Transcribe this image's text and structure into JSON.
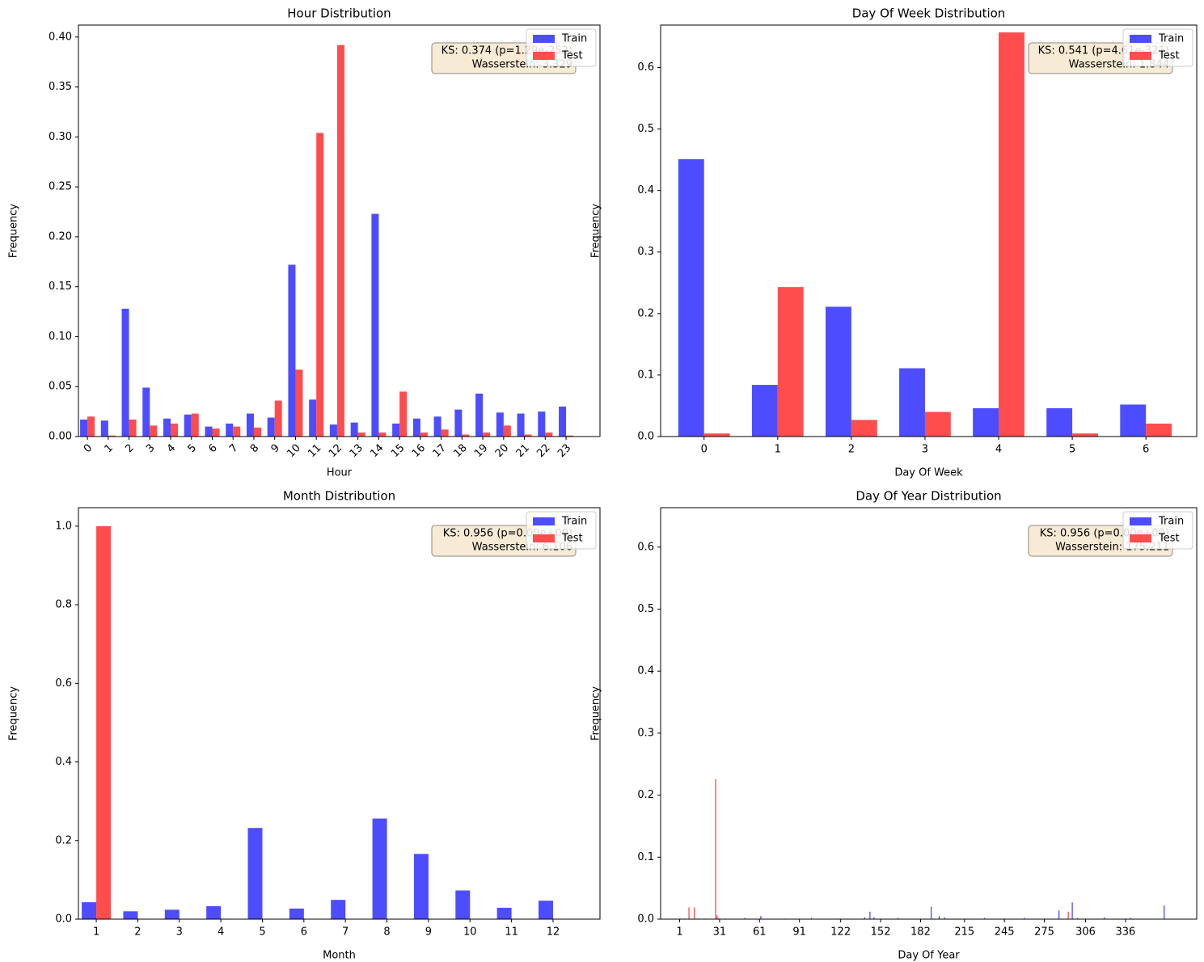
{
  "chart_data": [
    {
      "type": "bar",
      "title": "Hour Distribution",
      "xlabel": "Hour",
      "ylabel": "Frequency",
      "categories": [
        "0",
        "1",
        "2",
        "3",
        "4",
        "5",
        "6",
        "7",
        "8",
        "9",
        "10",
        "11",
        "12",
        "13",
        "14",
        "15",
        "16",
        "17",
        "18",
        "19",
        "20",
        "21",
        "22",
        "23"
      ],
      "xtick_rotation": 45,
      "series": [
        {
          "name": "Train",
          "color": "#4d4dff",
          "values": [
            0.017,
            0.016,
            0.128,
            0.049,
            0.018,
            0.022,
            0.01,
            0.013,
            0.023,
            0.019,
            0.172,
            0.037,
            0.012,
            0.014,
            0.223,
            0.013,
            0.018,
            0.02,
            0.027,
            0.043,
            0.024,
            0.023,
            0.025,
            0.03
          ]
        },
        {
          "name": "Test",
          "color": "#ff4d4d",
          "values": [
            0.02,
            0.001,
            0.017,
            0.011,
            0.013,
            0.023,
            0.008,
            0.01,
            0.009,
            0.036,
            0.067,
            0.304,
            0.392,
            0.004,
            0.004,
            0.045,
            0.004,
            0.007,
            0.002,
            0.004,
            0.011,
            0.002,
            0.004,
            0.001
          ]
        }
      ],
      "ylim": [
        0,
        0.412
      ],
      "yticks": [
        {
          "value": 0,
          "label": "0.00"
        },
        0.05,
        {
          "value": 0.1,
          "label": "0.10"
        },
        0.15,
        {
          "value": 0.2,
          "label": "0.20"
        },
        0.25,
        {
          "value": 0.3,
          "label": "0.30"
        },
        0.35,
        {
          "value": 0.4,
          "label": "0.40"
        }
      ],
      "annotation": [
        "KS: 0.374 (p=1.29e-252)",
        "Wasserstein: 3.329"
      ],
      "legend": "upper right"
    },
    {
      "type": "bar",
      "title": "Day Of Week Distribution",
      "xlabel": "Day Of Week",
      "ylabel": "Frequency",
      "categories": [
        "0",
        "1",
        "2",
        "3",
        "4",
        "5",
        "6"
      ],
      "series": [
        {
          "name": "Train",
          "color": "#4d4dff",
          "values": [
            0.451,
            0.084,
            0.211,
            0.111,
            0.046,
            0.046,
            0.052
          ]
        },
        {
          "name": "Test",
          "color": "#ff4d4d",
          "values": [
            0.005,
            0.243,
            0.027,
            0.04,
            0.657,
            0.005,
            0.021
          ]
        }
      ],
      "ylim": [
        0,
        0.669
      ],
      "yticks": [
        {
          "value": 0,
          "label": "0.0"
        },
        0.1,
        0.2,
        0.3,
        0.4,
        0.5,
        0.6
      ],
      "annotation": [
        "KS: 0.541 (p=4.61e-321)",
        "Wasserstein: 1.844"
      ],
      "legend": "upper right"
    },
    {
      "type": "bar",
      "title": "Month Distribution",
      "xlabel": "Month",
      "ylabel": "Frequency",
      "categories": [
        "1",
        "2",
        "3",
        "4",
        "5",
        "6",
        "7",
        "8",
        "9",
        "10",
        "11",
        "12"
      ],
      "series": [
        {
          "name": "Train",
          "color": "#4d4dff",
          "values": [
            0.043,
            0.02,
            0.024,
            0.033,
            0.232,
            0.027,
            0.049,
            0.256,
            0.166,
            0.073,
            0.029,
            0.047
          ]
        },
        {
          "name": "Test",
          "color": "#ff4d4d",
          "values": [
            1.0,
            0,
            0,
            0,
            0,
            0,
            0,
            0,
            0,
            0,
            0,
            0
          ]
        }
      ],
      "ylim": [
        0,
        1.047
      ],
      "yticks": [
        {
          "value": 0,
          "label": "0.0"
        },
        0.2,
        0.4,
        0.6,
        0.8,
        {
          "value": 1,
          "label": "1.0"
        }
      ],
      "annotation": [
        "KS: 0.956 (p=0.00e+00)",
        "Wasserstein: 6.106"
      ],
      "legend": "upper right"
    },
    {
      "type": "bar",
      "title": "Day Of Year Distribution",
      "xlabel": "Day Of Year",
      "ylabel": "Frequency",
      "x": [
        2,
        5,
        8,
        12,
        15,
        20,
        28,
        29,
        30,
        35,
        50,
        62,
        80,
        100,
        120,
        140,
        144,
        147,
        165,
        190,
        196,
        200,
        230,
        260,
        286,
        293,
        296,
        300,
        320,
        340,
        365
      ],
      "series": [
        {
          "name": "Train",
          "color": "#4d4dff",
          "values": [
            0.001,
            null,
            null,
            null,
            0.001,
            null,
            null,
            null,
            null,
            0.001,
            0.002,
            0.005,
            0.001,
            0.002,
            0.001,
            0.003,
            0.012,
            0.003,
            0.002,
            0.02,
            0.005,
            0.003,
            0.002,
            0.002,
            0.014,
            null,
            0.027,
            0.002,
            0.003,
            0.002,
            0.022
          ]
        },
        {
          "name": "Test",
          "color": "#ff4d4d",
          "values": [
            null,
            0.001,
            0.019,
            0.019,
            null,
            0.001,
            0.226,
            0.006,
            0.002,
            null,
            null,
            null,
            null,
            null,
            null,
            null,
            null,
            null,
            null,
            null,
            null,
            null,
            null,
            null,
            null,
            0.012,
            null,
            null,
            null,
            null,
            null
          ]
        }
      ],
      "xlim": [
        -13.3,
        389.5
      ],
      "xticks": [
        1,
        31,
        61,
        91,
        122,
        152,
        182,
        215,
        245,
        275,
        306,
        336
      ],
      "ylim": [
        0,
        0.6636
      ],
      "yticks": [
        {
          "value": 0,
          "label": "0.0"
        },
        0.1,
        0.2,
        0.3,
        0.4,
        0.5,
        0.6
      ],
      "annotation": [
        "KS: 0.956 (p=0.00e+00)",
        "Wasserstein: 175.211"
      ],
      "legend": "upper right"
    }
  ]
}
